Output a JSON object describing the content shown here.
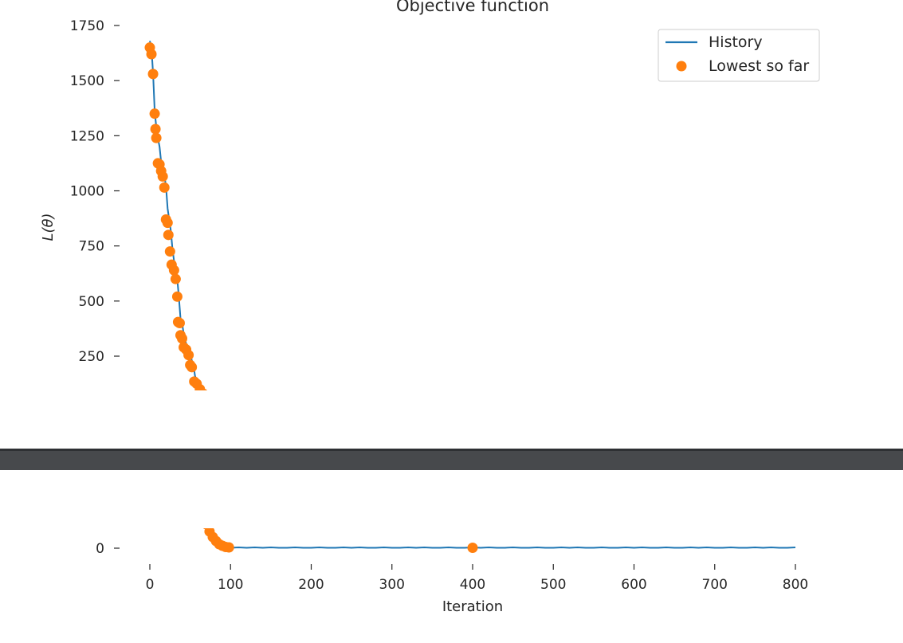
{
  "chart_data": {
    "type": "line",
    "title": "Objective function",
    "xlabel": "Iteration",
    "ylabel": "L(θ)",
    "upper_panel": {
      "ylim": [
        100,
        1780
      ],
      "yticks": [
        250,
        500,
        750,
        1000,
        1250,
        1500,
        1750
      ],
      "xlim": [
        -40,
        840
      ]
    },
    "lower_panel": {
      "ylim": [
        -40,
        90
      ],
      "yticks": [
        0
      ],
      "xlim": [
        -40,
        840
      ],
      "xticks": [
        0,
        100,
        200,
        300,
        400,
        500,
        600,
        700,
        800
      ]
    },
    "legend": {
      "location": "top-right",
      "entries": [
        "History",
        "Lowest so far"
      ]
    },
    "series": [
      {
        "name": "History",
        "kind": "line",
        "color": "#1f77b4",
        "x": [
          0,
          2,
          4,
          6,
          8,
          10,
          12,
          14,
          16,
          18,
          20,
          22,
          24,
          26,
          28,
          30,
          32,
          34,
          36,
          38,
          40,
          42,
          44,
          46,
          48,
          50,
          52,
          54,
          56,
          58,
          60,
          62,
          64,
          66,
          68,
          70,
          72,
          74,
          76,
          78,
          80,
          82,
          84,
          86,
          88,
          90,
          92,
          94,
          96,
          98,
          100,
          110,
          120,
          130,
          140,
          150,
          160,
          170,
          180,
          190,
          200,
          210,
          220,
          230,
          240,
          250,
          260,
          270,
          280,
          290,
          300,
          310,
          320,
          330,
          340,
          350,
          360,
          370,
          380,
          390,
          400,
          410,
          420,
          430,
          440,
          450,
          460,
          470,
          480,
          490,
          500,
          510,
          520,
          530,
          540,
          550,
          560,
          570,
          580,
          590,
          600,
          610,
          620,
          630,
          640,
          650,
          660,
          670,
          680,
          690,
          700,
          710,
          720,
          730,
          740,
          750,
          760,
          770,
          780,
          790,
          800
        ],
        "y": [
          1680,
          1650,
          1530,
          1360,
          1290,
          1240,
          1200,
          1130,
          1110,
          1070,
          1020,
          920,
          870,
          820,
          740,
          680,
          640,
          600,
          520,
          420,
          400,
          350,
          320,
          290,
          280,
          260,
          230,
          210,
          160,
          140,
          120,
          110,
          100,
          80,
          65,
          52,
          40,
          30,
          22,
          15,
          10,
          7,
          5,
          4,
          3,
          3,
          2,
          2,
          2,
          1,
          1,
          2,
          1,
          2,
          1,
          2,
          1,
          1,
          2,
          1,
          1,
          2,
          1,
          1,
          2,
          1,
          2,
          1,
          1,
          2,
          1,
          1,
          2,
          1,
          2,
          1,
          1,
          2,
          1,
          1,
          2,
          1,
          2,
          1,
          1,
          2,
          1,
          1,
          2,
          1,
          1,
          2,
          1,
          2,
          1,
          1,
          2,
          1,
          1,
          2,
          1,
          2,
          1,
          1,
          2,
          1,
          1,
          2,
          1,
          2,
          1,
          1,
          2,
          1,
          1,
          2,
          1,
          2,
          1,
          1,
          2
        ]
      },
      {
        "name": "Lowest so far",
        "kind": "scatter",
        "color": "#ff7f0e",
        "x": [
          0,
          2,
          4,
          6,
          7,
          8,
          10,
          12,
          14,
          16,
          18,
          20,
          22,
          23,
          25,
          27,
          30,
          32,
          34,
          35,
          37,
          38,
          40,
          42,
          45,
          48,
          50,
          52,
          55,
          58,
          62,
          66,
          70,
          74,
          78,
          82,
          86,
          90,
          94,
          98,
          400
        ],
        "y": [
          1650,
          1620,
          1530,
          1350,
          1280,
          1240,
          1125,
          1120,
          1090,
          1065,
          1015,
          870,
          855,
          800,
          725,
          665,
          640,
          600,
          520,
          405,
          400,
          345,
          330,
          290,
          280,
          255,
          210,
          200,
          135,
          125,
          100,
          80,
          60,
          42,
          28,
          18,
          10,
          6,
          3,
          2,
          1
        ]
      }
    ]
  },
  "separator": {
    "color": "#47494c"
  }
}
